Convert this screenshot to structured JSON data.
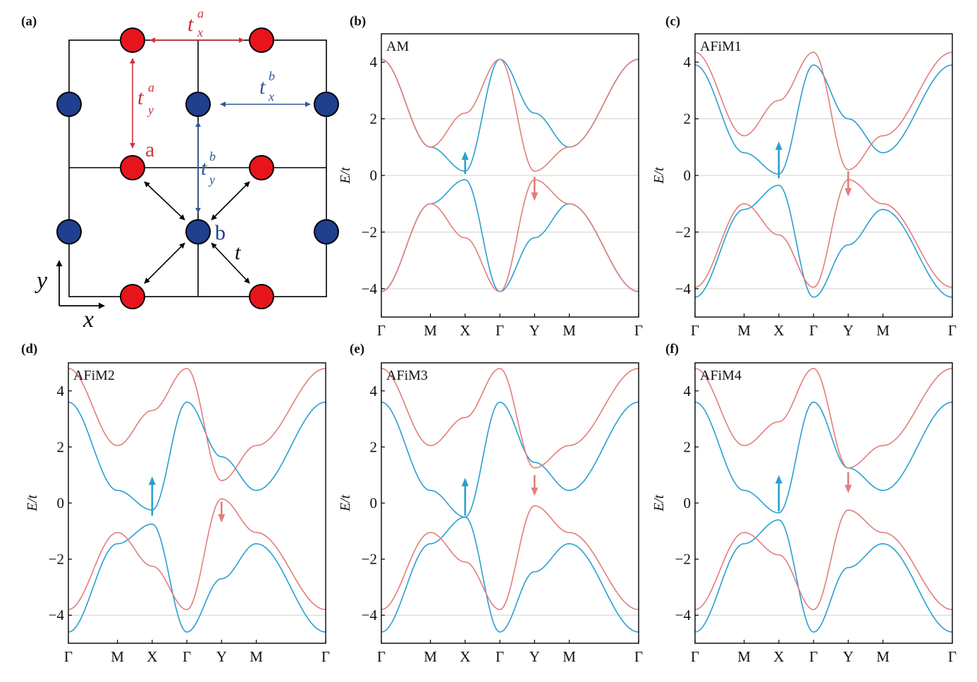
{
  "colors": {
    "band_up": "#2a9fd0",
    "band_down": "#e27e7a",
    "site_a": "#e8141c",
    "site_b": "#1f3f8f",
    "hop_a": "#d3303a",
    "hop_b": "#2f5a9a",
    "gridline": "#d0d0d0",
    "axis": "#000000"
  },
  "lattice": {
    "panel_label": "(a)",
    "site_a_label": "a",
    "site_b_label": "b",
    "hop_labels": {
      "tax": {
        "base": "t",
        "sup": "a",
        "sub": "x"
      },
      "tay": {
        "base": "t",
        "sup": "a",
        "sub": "y"
      },
      "tbx": {
        "base": "t",
        "sup": "b",
        "sub": "x"
      },
      "tby": {
        "base": "t",
        "sup": "b",
        "sub": "y"
      },
      "t": "t"
    },
    "axis_x": "x",
    "axis_y": "y"
  },
  "chart_data": [
    {
      "panel_label": "(b)",
      "title": "AM",
      "type": "line",
      "xlabel": "",
      "ylabel": "E/t",
      "xtick_labels": [
        "Γ",
        "M",
        "X",
        "Γ",
        "Y",
        "M",
        "Γ"
      ],
      "xtick_positions": [
        0,
        1,
        1.707,
        2.414,
        3.121,
        3.828,
        5.242
      ],
      "ylim": [
        -5,
        5
      ],
      "yticks": [
        4,
        2,
        0,
        -2,
        -4
      ],
      "ytick_labels": [
        "4",
        "2",
        "0",
        "−2",
        "−4"
      ],
      "grid_y": [
        2,
        0,
        -2,
        -4
      ],
      "series": [
        {
          "spin": "up",
          "points": [
            [
              0,
              4.1
            ],
            [
              1,
              1.0
            ],
            [
              1.707,
              0.15
            ],
            [
              2.414,
              4.1
            ],
            [
              3.121,
              2.2
            ],
            [
              3.828,
              1.0
            ],
            [
              5.242,
              4.1
            ]
          ]
        },
        {
          "spin": "up",
          "points": [
            [
              0,
              -4.1
            ],
            [
              1,
              -1.0
            ],
            [
              1.707,
              -0.15
            ],
            [
              2.414,
              -4.1
            ],
            [
              3.121,
              -2.2
            ],
            [
              3.828,
              -1.0
            ],
            [
              5.242,
              -4.1
            ]
          ]
        },
        {
          "spin": "down",
          "points": [
            [
              0,
              4.1
            ],
            [
              1,
              1.0
            ],
            [
              1.707,
              2.2
            ],
            [
              2.414,
              4.1
            ],
            [
              3.121,
              0.15
            ],
            [
              3.828,
              1.0
            ],
            [
              5.242,
              4.1
            ]
          ]
        },
        {
          "spin": "down",
          "points": [
            [
              0,
              -4.1
            ],
            [
              1,
              -1.0
            ],
            [
              1.707,
              -2.2
            ],
            [
              2.414,
              -4.1
            ],
            [
              3.121,
              -0.15
            ],
            [
              3.828,
              -1.0
            ],
            [
              5.242,
              -4.1
            ]
          ]
        }
      ],
      "arrows": [
        {
          "spin": "up",
          "x": 1.707,
          "y_from": 0.05,
          "y_to": 0.85
        },
        {
          "spin": "down",
          "x": 3.121,
          "y_from": -0.05,
          "y_to": -0.9
        }
      ]
    },
    {
      "panel_label": "(c)",
      "title": "AFiM1",
      "type": "line",
      "xlabel": "",
      "ylabel": "E/t",
      "xtick_labels": [
        "Γ",
        "M",
        "X",
        "Γ",
        "Y",
        "M",
        "Γ"
      ],
      "xtick_positions": [
        0,
        1,
        1.707,
        2.414,
        3.121,
        3.828,
        5.242
      ],
      "ylim": [
        -5,
        5
      ],
      "yticks": [
        4,
        2,
        0,
        -2,
        -4
      ],
      "ytick_labels": [
        "4",
        "2",
        "0",
        "−2",
        "−4"
      ],
      "grid_y": [
        2,
        0,
        -2,
        -4
      ],
      "series": [
        {
          "spin": "up",
          "points": [
            [
              0,
              3.9
            ],
            [
              1,
              0.8
            ],
            [
              1.707,
              0.05
            ],
            [
              2.414,
              3.9
            ],
            [
              3.121,
              2.0
            ],
            [
              3.828,
              0.8
            ],
            [
              5.242,
              3.9
            ]
          ]
        },
        {
          "spin": "up",
          "points": [
            [
              0,
              -4.3
            ],
            [
              1,
              -1.2
            ],
            [
              1.707,
              -0.35
            ],
            [
              2.414,
              -4.3
            ],
            [
              3.121,
              -2.45
            ],
            [
              3.828,
              -1.2
            ],
            [
              5.242,
              -4.3
            ]
          ]
        },
        {
          "spin": "down",
          "points": [
            [
              0,
              4.35
            ],
            [
              1,
              1.4
            ],
            [
              1.707,
              2.65
            ],
            [
              2.414,
              4.35
            ],
            [
              3.121,
              0.2
            ],
            [
              3.828,
              1.4
            ],
            [
              5.242,
              4.35
            ]
          ]
        },
        {
          "spin": "down",
          "points": [
            [
              0,
              -3.95
            ],
            [
              1,
              -1.0
            ],
            [
              1.707,
              -2.1
            ],
            [
              2.414,
              -3.95
            ],
            [
              3.121,
              -0.15
            ],
            [
              3.828,
              -1.0
            ],
            [
              5.242,
              -3.95
            ]
          ]
        }
      ],
      "arrows": [
        {
          "spin": "up",
          "x": 1.707,
          "y_from": -0.1,
          "y_to": 1.2
        },
        {
          "spin": "down",
          "x": 3.121,
          "y_from": 0.15,
          "y_to": -0.75
        }
      ]
    },
    {
      "panel_label": "(d)",
      "title": "AFiM2",
      "type": "line",
      "xlabel": "",
      "ylabel": "E/t",
      "xtick_labels": [
        "Γ",
        "M",
        "X",
        "Γ",
        "Y",
        "M",
        "Γ"
      ],
      "xtick_positions": [
        0,
        1,
        1.707,
        2.414,
        3.121,
        3.828,
        5.242
      ],
      "ylim": [
        -5,
        5
      ],
      "yticks": [
        4,
        2,
        0,
        -2,
        -4
      ],
      "ytick_labels": [
        "4",
        "2",
        "0",
        "−2",
        "−4"
      ],
      "grid_y": [
        -4
      ],
      "series": [
        {
          "spin": "up",
          "points": [
            [
              0,
              3.6
            ],
            [
              1,
              0.45
            ],
            [
              1.707,
              -0.25
            ],
            [
              2.414,
              3.6
            ],
            [
              3.121,
              1.65
            ],
            [
              3.828,
              0.45
            ],
            [
              5.242,
              3.6
            ]
          ]
        },
        {
          "spin": "up",
          "points": [
            [
              0,
              -4.6
            ],
            [
              1,
              -1.45
            ],
            [
              1.707,
              -0.75
            ],
            [
              2.414,
              -4.6
            ],
            [
              3.121,
              -2.7
            ],
            [
              3.828,
              -1.45
            ],
            [
              5.242,
              -4.6
            ]
          ]
        },
        {
          "spin": "down",
          "points": [
            [
              0,
              4.8
            ],
            [
              1,
              2.05
            ],
            [
              1.707,
              3.3
            ],
            [
              2.414,
              4.8
            ],
            [
              3.121,
              0.8
            ],
            [
              3.828,
              2.05
            ],
            [
              5.242,
              4.8
            ]
          ]
        },
        {
          "spin": "down",
          "points": [
            [
              0,
              -3.8
            ],
            [
              1,
              -1.05
            ],
            [
              1.707,
              -2.25
            ],
            [
              2.414,
              -3.8
            ],
            [
              3.121,
              0.15
            ],
            [
              3.828,
              -1.05
            ],
            [
              5.242,
              -3.8
            ]
          ]
        }
      ],
      "arrows": [
        {
          "spin": "up",
          "x": 1.707,
          "y_from": -0.45,
          "y_to": 0.95
        },
        {
          "spin": "down",
          "x": 3.121,
          "y_from": 0.05,
          "y_to": -0.7
        }
      ]
    },
    {
      "panel_label": "(e)",
      "title": "AFiM3",
      "type": "line",
      "xlabel": "",
      "ylabel": "E/t",
      "xtick_labels": [
        "Γ",
        "M",
        "X",
        "Γ",
        "Y",
        "M",
        "Γ"
      ],
      "xtick_positions": [
        0,
        1,
        1.707,
        2.414,
        3.121,
        3.828,
        5.242
      ],
      "ylim": [
        -5,
        5
      ],
      "yticks": [
        4,
        2,
        0,
        -2,
        -4
      ],
      "ytick_labels": [
        "4",
        "2",
        "0",
        "−2",
        "−4"
      ],
      "grid_y": [
        -4
      ],
      "series": [
        {
          "spin": "up",
          "points": [
            [
              0,
              3.6
            ],
            [
              1,
              0.45
            ],
            [
              1.707,
              -0.5
            ],
            [
              2.414,
              3.6
            ],
            [
              3.121,
              1.45
            ],
            [
              3.828,
              0.45
            ],
            [
              5.242,
              3.6
            ]
          ]
        },
        {
          "spin": "up",
          "points": [
            [
              0,
              -4.6
            ],
            [
              1,
              -1.45
            ],
            [
              1.707,
              -0.5
            ],
            [
              2.414,
              -4.6
            ],
            [
              3.121,
              -2.45
            ],
            [
              3.828,
              -1.45
            ],
            [
              5.242,
              -4.6
            ]
          ]
        },
        {
          "spin": "down",
          "points": [
            [
              0,
              4.8
            ],
            [
              1,
              2.05
            ],
            [
              1.707,
              3.05
            ],
            [
              2.414,
              4.8
            ],
            [
              3.121,
              1.25
            ],
            [
              3.828,
              2.05
            ],
            [
              5.242,
              4.8
            ]
          ]
        },
        {
          "spin": "down",
          "points": [
            [
              0,
              -3.8
            ],
            [
              1,
              -1.05
            ],
            [
              1.707,
              -2.1
            ],
            [
              2.414,
              -3.8
            ],
            [
              3.121,
              -0.1
            ],
            [
              3.828,
              -1.05
            ],
            [
              5.242,
              -3.8
            ]
          ]
        }
      ],
      "arrows": [
        {
          "spin": "up",
          "x": 1.707,
          "y_from": -0.45,
          "y_to": 0.9
        },
        {
          "spin": "down",
          "x": 3.121,
          "y_from": 1.0,
          "y_to": 0.25
        }
      ]
    },
    {
      "panel_label": "(f)",
      "title": "AFiM4",
      "type": "line",
      "xlabel": "",
      "ylabel": "E/t",
      "xtick_labels": [
        "Γ",
        "M",
        "X",
        "Γ",
        "Y",
        "M",
        "Γ"
      ],
      "xtick_positions": [
        0,
        1,
        1.707,
        2.414,
        3.121,
        3.828,
        5.242
      ],
      "ylim": [
        -5,
        5
      ],
      "yticks": [
        4,
        2,
        0,
        -2,
        -4
      ],
      "ytick_labels": [
        "4",
        "2",
        "0",
        "−2",
        "−4"
      ],
      "grid_y": [
        -4
      ],
      "series": [
        {
          "spin": "up",
          "points": [
            [
              0,
              3.6
            ],
            [
              1,
              0.45
            ],
            [
              1.707,
              -0.35
            ],
            [
              2.414,
              3.6
            ],
            [
              3.121,
              1.25
            ],
            [
              3.828,
              0.45
            ],
            [
              5.242,
              3.6
            ]
          ]
        },
        {
          "spin": "up",
          "points": [
            [
              0,
              -4.6
            ],
            [
              1,
              -1.45
            ],
            [
              1.707,
              -0.6
            ],
            [
              2.414,
              -4.6
            ],
            [
              3.121,
              -2.3
            ],
            [
              3.828,
              -1.45
            ],
            [
              5.242,
              -4.6
            ]
          ]
        },
        {
          "spin": "down",
          "points": [
            [
              0,
              4.8
            ],
            [
              1,
              2.05
            ],
            [
              1.707,
              2.9
            ],
            [
              2.414,
              4.8
            ],
            [
              3.121,
              1.25
            ],
            [
              3.828,
              2.05
            ],
            [
              5.242,
              4.8
            ]
          ]
        },
        {
          "spin": "down",
          "points": [
            [
              0,
              -3.8
            ],
            [
              1,
              -1.05
            ],
            [
              1.707,
              -1.85
            ],
            [
              2.414,
              -3.8
            ],
            [
              3.121,
              -0.25
            ],
            [
              3.828,
              -1.05
            ],
            [
              5.242,
              -3.8
            ]
          ]
        }
      ],
      "arrows": [
        {
          "spin": "up",
          "x": 1.707,
          "y_from": -0.3,
          "y_to": 1.0
        },
        {
          "spin": "down",
          "x": 3.121,
          "y_from": 1.1,
          "y_to": 0.35
        }
      ]
    }
  ]
}
